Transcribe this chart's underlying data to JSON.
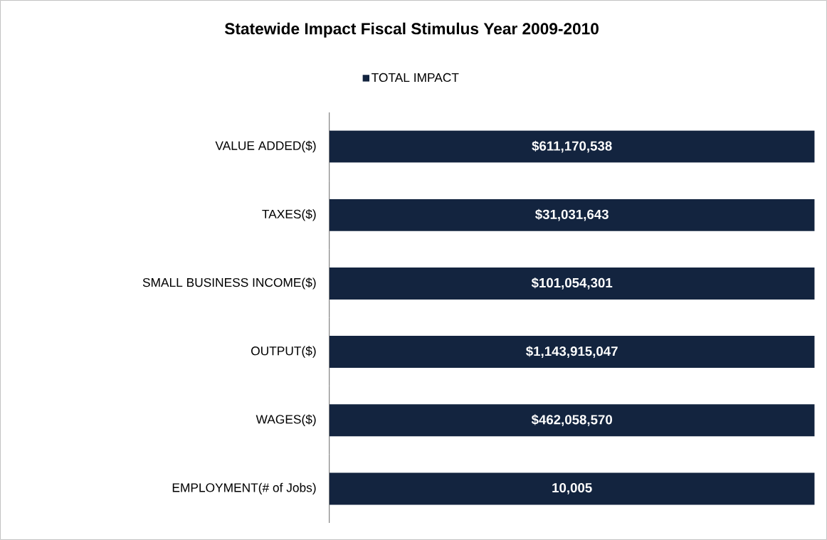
{
  "chart_data": [
    {
      "type": "bar",
      "orientation": "horizontal",
      "title": "Statewide Impact Fiscal Stimulus Year 2009-2010",
      "legend": "top",
      "tick_labels": "y",
      "categories": [
        "VALUE ADDED($)"
      ],
      "series": [
        {
          "name": "TOTAL IMPACT",
          "color": "#13243f",
          "values": [
            611170538
          ],
          "value_labels": [
            "$611,170,538"
          ]
        }
      ]
    },
    {
      "type": "bar",
      "orientation": "horizontal",
      "tick_labels": "y",
      "categories": [
        "TAXES($)"
      ],
      "series": [
        {
          "color": "#13243f",
          "values": [
            31031643
          ],
          "value_labels": [
            "$31,031,643"
          ]
        }
      ]
    },
    {
      "type": "bar",
      "orientation": "horizontal",
      "tick_labels": "y",
      "categories": [
        "SMALL BUSINESS INCOME($)"
      ],
      "series": [
        {
          "color": "#13243f",
          "values": [
            101054301
          ],
          "value_labels": [
            "$101,054,301"
          ]
        }
      ]
    },
    {
      "type": "bar",
      "orientation": "horizontal",
      "tick_labels": "y",
      "categories": [
        "OUTPUT($)"
      ],
      "series": [
        {
          "color": "#13243f",
          "values": [
            1143915047
          ],
          "value_labels": [
            "$1,143,915,047"
          ]
        }
      ]
    },
    {
      "type": "bar",
      "orientation": "horizontal",
      "tick_labels": "y",
      "categories": [
        "WAGES($)"
      ],
      "series": [
        {
          "color": "#13243f",
          "values": [
            462058570
          ],
          "value_labels": [
            "$462,058,570"
          ]
        }
      ]
    },
    {
      "type": "bar",
      "orientation": "horizontal",
      "tick_labels": "y",
      "categories": [
        "EMPLOYMENT(# of Jobs)"
      ],
      "series": [
        {
          "color": "#13243f",
          "values": [
            10005
          ],
          "value_labels": [
            "10,005"
          ]
        }
      ]
    }
  ]
}
